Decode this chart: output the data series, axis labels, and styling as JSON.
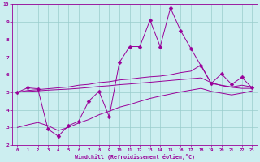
{
  "xlabel": "Windchill (Refroidissement éolien,°C)",
  "background_color": "#cceef0",
  "grid_color": "#99cccc",
  "line_color": "#990099",
  "xlim": [
    -0.5,
    23.5
  ],
  "ylim": [
    2,
    10
  ],
  "xticks": [
    0,
    1,
    2,
    3,
    4,
    5,
    6,
    7,
    8,
    9,
    10,
    11,
    12,
    13,
    14,
    15,
    16,
    17,
    18,
    19,
    20,
    21,
    22,
    23
  ],
  "yticks": [
    2,
    3,
    4,
    5,
    6,
    7,
    8,
    9,
    10
  ],
  "line1_x": [
    0,
    1,
    2,
    3,
    4,
    5,
    6,
    7,
    8,
    9,
    10,
    11,
    12,
    13,
    14,
    15,
    16,
    17,
    18,
    19,
    20,
    21,
    22,
    23
  ],
  "line1_y": [
    5.0,
    5.25,
    5.2,
    2.9,
    2.5,
    3.1,
    3.35,
    4.5,
    5.05,
    3.6,
    6.7,
    7.6,
    7.6,
    9.1,
    7.6,
    9.8,
    8.5,
    7.5,
    6.5,
    5.5,
    6.05,
    5.45,
    5.85,
    5.25
  ],
  "line2_x": [
    0,
    1,
    2,
    3,
    4,
    5,
    6,
    7,
    8,
    9,
    10,
    11,
    12,
    13,
    14,
    15,
    16,
    17,
    18,
    19,
    20,
    21,
    22,
    23
  ],
  "line2_y": [
    5.0,
    5.1,
    5.15,
    5.2,
    5.25,
    5.3,
    5.4,
    5.45,
    5.55,
    5.6,
    5.7,
    5.75,
    5.82,
    5.88,
    5.92,
    6.0,
    6.12,
    6.2,
    6.55,
    5.5,
    5.4,
    5.3,
    5.4,
    5.3
  ],
  "line3_x": [
    0,
    1,
    2,
    3,
    4,
    5,
    6,
    7,
    8,
    9,
    10,
    11,
    12,
    13,
    14,
    15,
    16,
    17,
    18,
    19,
    20,
    21,
    22,
    23
  ],
  "line3_y": [
    5.0,
    5.05,
    5.08,
    5.12,
    5.15,
    5.18,
    5.22,
    5.27,
    5.33,
    5.37,
    5.43,
    5.47,
    5.52,
    5.57,
    5.62,
    5.67,
    5.72,
    5.77,
    5.82,
    5.55,
    5.38,
    5.28,
    5.22,
    5.22
  ],
  "line4_x": [
    0,
    1,
    2,
    3,
    4,
    5,
    6,
    7,
    8,
    9,
    10,
    11,
    12,
    13,
    14,
    15,
    16,
    17,
    18,
    19,
    20,
    21,
    22,
    23
  ],
  "line4_y": [
    3.0,
    3.15,
    3.28,
    3.1,
    2.82,
    3.0,
    3.25,
    3.45,
    3.72,
    3.92,
    4.15,
    4.3,
    4.48,
    4.65,
    4.78,
    4.9,
    5.02,
    5.12,
    5.22,
    5.05,
    4.95,
    4.85,
    4.95,
    5.08
  ]
}
